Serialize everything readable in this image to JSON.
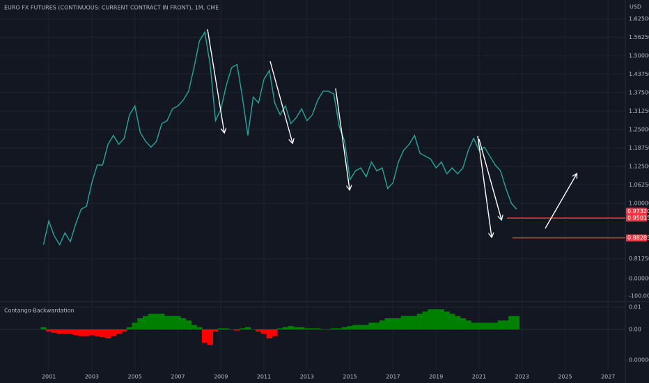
{
  "chart_data": [
    {
      "type": "line",
      "title": "EURO FX FUTURES (CONTINUOUS: CURRENT CONTRACT IN FRONT), 1M, CME",
      "currency": "USD",
      "color": "#26a69a",
      "x": [
        2000.75,
        2001,
        2001.25,
        2001.5,
        2001.75,
        2002,
        2002.25,
        2002.5,
        2002.75,
        2003,
        2003.25,
        2003.5,
        2003.75,
        2004,
        2004.25,
        2004.5,
        2004.75,
        2005,
        2005.25,
        2005.5,
        2005.75,
        2006,
        2006.25,
        2006.5,
        2006.75,
        2007,
        2007.25,
        2007.5,
        2007.75,
        2008,
        2008.25,
        2008.5,
        2008.75,
        2009,
        2009.25,
        2009.5,
        2009.75,
        2010,
        2010.25,
        2010.5,
        2010.75,
        2011,
        2011.25,
        2011.5,
        2011.75,
        2012,
        2012.25,
        2012.5,
        2012.75,
        2013,
        2013.25,
        2013.5,
        2013.75,
        2014,
        2014.25,
        2014.5,
        2014.75,
        2015,
        2015.25,
        2015.5,
        2015.75,
        2016,
        2016.25,
        2016.5,
        2016.75,
        2017,
        2017.25,
        2017.5,
        2017.75,
        2018,
        2018.25,
        2018.5,
        2018.75,
        2019,
        2019.25,
        2019.5,
        2019.75,
        2020,
        2020.25,
        2020.5,
        2020.75,
        2021,
        2021.25,
        2021.5,
        2021.75,
        2022,
        2022.25,
        2022.5,
        2022.75
      ],
      "values": [
        0.86,
        0.94,
        0.89,
        0.86,
        0.9,
        0.87,
        0.93,
        0.98,
        0.99,
        1.07,
        1.13,
        1.13,
        1.2,
        1.23,
        1.2,
        1.22,
        1.3,
        1.33,
        1.24,
        1.21,
        1.19,
        1.21,
        1.27,
        1.28,
        1.32,
        1.33,
        1.35,
        1.38,
        1.46,
        1.55,
        1.58,
        1.47,
        1.28,
        1.32,
        1.4,
        1.46,
        1.47,
        1.36,
        1.23,
        1.36,
        1.34,
        1.42,
        1.45,
        1.34,
        1.3,
        1.33,
        1.27,
        1.29,
        1.32,
        1.28,
        1.3,
        1.35,
        1.38,
        1.38,
        1.37,
        1.26,
        1.21,
        1.08,
        1.11,
        1.12,
        1.09,
        1.14,
        1.11,
        1.12,
        1.05,
        1.07,
        1.14,
        1.18,
        1.2,
        1.23,
        1.17,
        1.16,
        1.15,
        1.12,
        1.14,
        1.1,
        1.12,
        1.1,
        1.12,
        1.18,
        1.22,
        1.18,
        1.19,
        1.16,
        1.13,
        1.11,
        1.05,
        1.0,
        0.98
      ],
      "xlim": [
        1998.73,
        2027.8
      ],
      "ylim": [
        0.6745,
        1.6887
      ],
      "yticks": [
        {
          "value": 1.625,
          "label": "1.62500"
        },
        {
          "value": 1.5625,
          "label": "1.56250"
        },
        {
          "value": 1.5,
          "label": "1.50000"
        },
        {
          "value": 1.4375,
          "label": "1.43750"
        },
        {
          "value": 1.375,
          "label": "1.37500"
        },
        {
          "value": 1.3125,
          "label": "1.31250"
        },
        {
          "value": 1.25,
          "label": "1.25000"
        },
        {
          "value": 1.1875,
          "label": "1.18750"
        },
        {
          "value": 1.125,
          "label": "1.12500"
        },
        {
          "value": 1.0625,
          "label": "1.06250"
        },
        {
          "value": 1.0,
          "label": "1.00000"
        },
        {
          "value": 0.8125,
          "label": "0.81250"
        }
      ],
      "y2lim": [
        -120,
        1600
      ],
      "y2ticks": [
        {
          "value": 0,
          "label": "0.00000"
        },
        {
          "value": -100,
          "label": "-100.00000"
        }
      ],
      "price_labels": [
        {
          "value": 0.9732,
          "label": "0.97320",
          "color": "#f23645"
        },
        {
          "value": 0.95015,
          "label": "0.95015",
          "color": "#f23645",
          "line_from": 2022.3
        },
        {
          "value": 0.88285,
          "label": "0.88285",
          "color": "#f23645",
          "line_from": 2022.55
        }
      ],
      "grid": true
    },
    {
      "type": "bar",
      "title": "Contango-Backwardation",
      "positive_color": "#008000",
      "negative_color": "#ff0000",
      "x": [
        2000.75,
        2001,
        2001.25,
        2001.5,
        2001.75,
        2002,
        2002.25,
        2002.5,
        2002.75,
        2003,
        2003.25,
        2003.5,
        2003.75,
        2004,
        2004.25,
        2004.5,
        2004.75,
        2005,
        2005.25,
        2005.5,
        2005.75,
        2006,
        2006.25,
        2006.5,
        2006.75,
        2007,
        2007.25,
        2007.5,
        2007.75,
        2008,
        2008.25,
        2008.5,
        2008.75,
        2009,
        2009.25,
        2009.5,
        2009.75,
        2010,
        2010.25,
        2010.5,
        2010.75,
        2011,
        2011.25,
        2011.5,
        2011.75,
        2012,
        2012.25,
        2012.5,
        2012.75,
        2013,
        2013.25,
        2013.5,
        2013.75,
        2014,
        2014.25,
        2014.5,
        2014.75,
        2015,
        2015.25,
        2015.5,
        2015.75,
        2016,
        2016.25,
        2016.5,
        2016.75,
        2017,
        2017.25,
        2017.5,
        2017.75,
        2018,
        2018.25,
        2018.5,
        2018.75,
        2019,
        2019.25,
        2019.5,
        2019.75,
        2020,
        2020.25,
        2020.5,
        2020.75,
        2021,
        2021.25,
        2021.5,
        2021.75,
        2022,
        2022.25,
        2022.5,
        2022.75
      ],
      "values": [
        0.001,
        -0.001,
        -0.0015,
        -0.002,
        -0.002,
        -0.002,
        -0.0025,
        -0.003,
        -0.003,
        -0.0025,
        -0.003,
        -0.0035,
        -0.004,
        -0.003,
        -0.002,
        -0.001,
        0.001,
        0.003,
        0.005,
        0.006,
        0.007,
        0.007,
        0.007,
        0.006,
        0.006,
        0.006,
        0.005,
        0.004,
        0.002,
        0.001,
        -0.006,
        -0.007,
        -0.001,
        0.0005,
        0.0005,
        0,
        -0.0005,
        0.0005,
        0.001,
        0,
        -0.001,
        -0.002,
        -0.004,
        -0.003,
        0.0005,
        0.001,
        0.0015,
        0.001,
        0.001,
        0.0005,
        0.0005,
        0.0005,
        0,
        0,
        0.0005,
        0.0005,
        0.001,
        0.0015,
        0.002,
        0.002,
        0.002,
        0.003,
        0.003,
        0.004,
        0.005,
        0.005,
        0.005,
        0.006,
        0.006,
        0.006,
        0.007,
        0.008,
        0.009,
        0.009,
        0.009,
        0.008,
        0.007,
        0.006,
        0.005,
        0.004,
        0.003,
        0.003,
        0.003,
        0.003,
        0.003,
        0.004,
        0.004,
        0.006,
        0.006
      ],
      "xlim": [
        1998.73,
        2027.8
      ],
      "xticks": [
        2001,
        2003,
        2005,
        2007,
        2009,
        2011,
        2013,
        2015,
        2017,
        2019,
        2021,
        2023,
        2025,
        2027
      ],
      "ylim": [
        -0.0184,
        0.01125
      ],
      "yticks": [
        {
          "value": 0.01,
          "label": "0.01"
        },
        {
          "value": 0,
          "label": "0.00"
        }
      ],
      "y2lim": [
        -0.00015,
        0.0008
      ],
      "y2ticks": [
        {
          "value": 0,
          "label": "0.00000"
        }
      ],
      "grid": true
    }
  ]
}
